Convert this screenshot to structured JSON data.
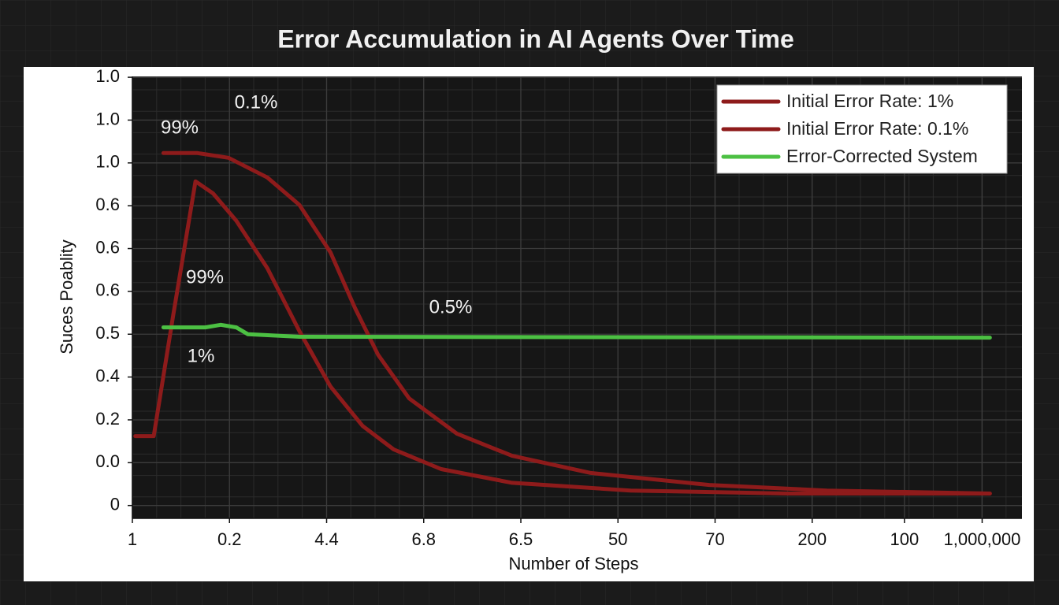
{
  "chart_data": {
    "type": "line",
    "title": "Error Accumulation in AI Agents Over Time",
    "x_label": "Number of Steps",
    "y_label": "Suces Poablity",
    "xlim": [
      0,
      9.16
    ],
    "ylim": [
      -0.3,
      10.02
    ],
    "xticks": [
      {
        "value": 0,
        "label": "1"
      },
      {
        "value": 1,
        "label": "0.2"
      },
      {
        "value": 2,
        "label": "4.4"
      },
      {
        "value": 3,
        "label": "6.8"
      },
      {
        "value": 4,
        "label": "6.5"
      },
      {
        "value": 5,
        "label": "50"
      },
      {
        "value": 6,
        "label": "70"
      },
      {
        "value": 7,
        "label": "200"
      },
      {
        "value": 7.95,
        "label": "100"
      },
      {
        "value": 8.75,
        "label": "1,000,000"
      }
    ],
    "yticks": [
      {
        "value": 0,
        "label": "0"
      },
      {
        "value": 1,
        "label": "0.0"
      },
      {
        "value": 2,
        "label": "0.2"
      },
      {
        "value": 3,
        "label": "0.4"
      },
      {
        "value": 4,
        "label": "0.5"
      },
      {
        "value": 5,
        "label": "0.6"
      },
      {
        "value": 6,
        "label": "0.6"
      },
      {
        "value": 7,
        "label": "0.6"
      },
      {
        "value": 8,
        "label": "1.0"
      },
      {
        "value": 9,
        "label": "1.0"
      },
      {
        "value": 10,
        "label": "1.0"
      }
    ],
    "grid": true,
    "legend": "upper right",
    "series": [
      {
        "name": "Initial Error Rate: 1%",
        "color": "#8e1b1b",
        "x": [
          0.03,
          0.22,
          0.42,
          0.65,
          0.83,
          1.07,
          1.39,
          1.72,
          2.04,
          2.37,
          2.69,
          3.18,
          3.91,
          5.13,
          6.75,
          8.83
        ],
        "values": [
          1.62,
          1.62,
          4.44,
          7.57,
          7.29,
          6.65,
          5.54,
          4.07,
          2.78,
          1.86,
          1.31,
          0.85,
          0.53,
          0.35,
          0.28,
          0.28
        ]
      },
      {
        "name": "Initial Error Rate: 0.1%",
        "color": "#8e1b1b",
        "x": [
          0.32,
          0.67,
          0.99,
          1.39,
          1.72,
          2.04,
          2.29,
          2.53,
          2.85,
          3.34,
          3.91,
          4.72,
          5.94,
          7.15,
          8.83
        ],
        "values": [
          8.23,
          8.23,
          8.12,
          7.66,
          7.02,
          5.91,
          4.62,
          3.52,
          2.5,
          1.68,
          1.16,
          0.76,
          0.48,
          0.35,
          0.28
        ]
      },
      {
        "name": "Error-Corrected System",
        "color": "#4cc043",
        "x": [
          0.32,
          0.75,
          0.91,
          1.07,
          1.19,
          1.72,
          8.83
        ],
        "values": [
          4.16,
          4.16,
          4.22,
          4.16,
          4.0,
          3.94,
          3.92
        ]
      }
    ],
    "annotations": [
      "0.1%",
      "99%",
      "99%",
      "0.5%",
      "1%"
    ]
  }
}
